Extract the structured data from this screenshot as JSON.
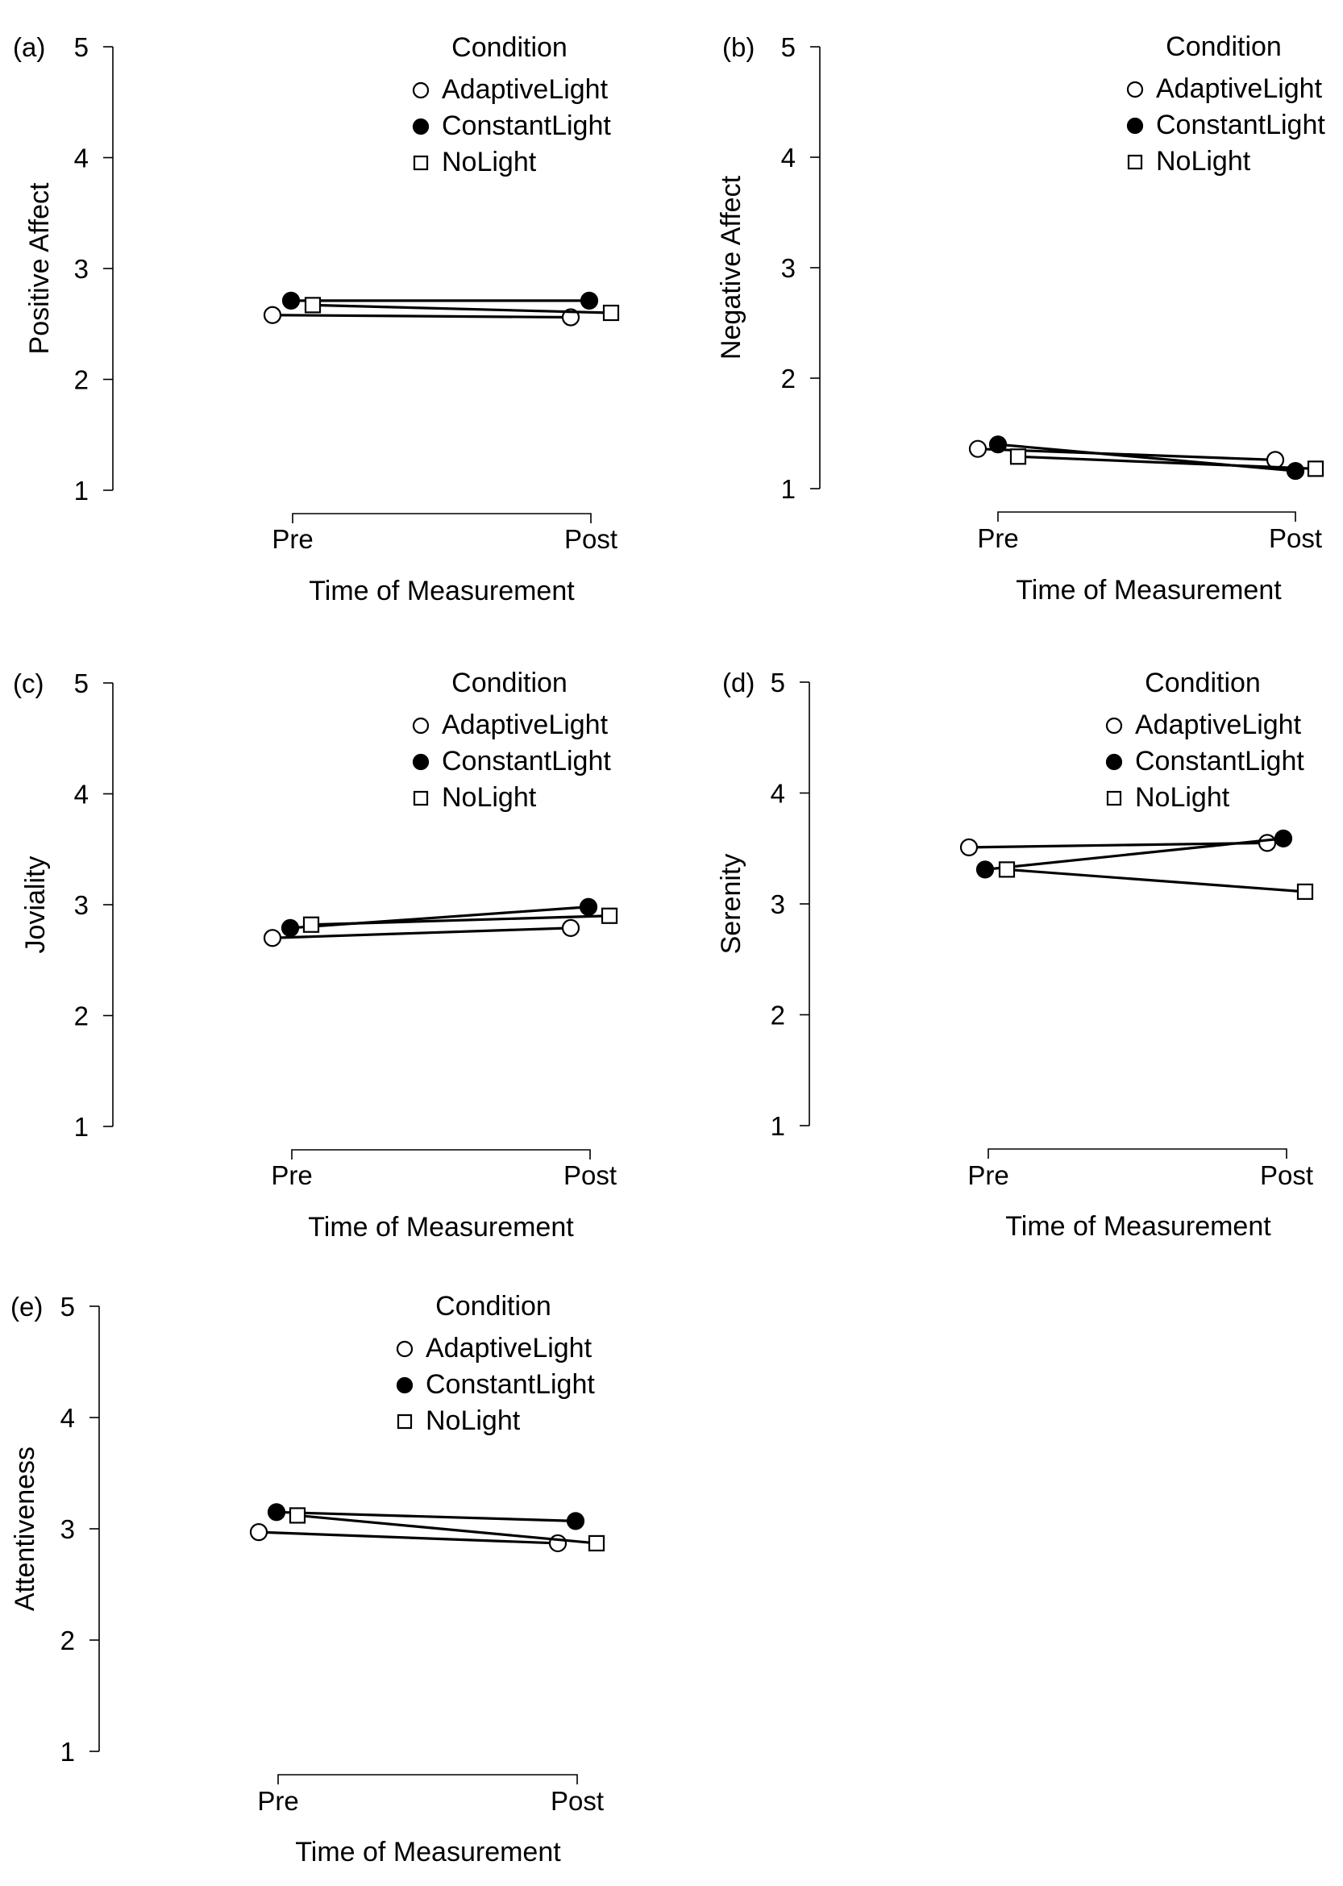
{
  "chart_data": [
    {
      "type": "line",
      "panel_label": "(a)",
      "xlabel": "Time of Measurement",
      "ylabel": "Positive Affect",
      "categories": [
        "Pre",
        "Post"
      ],
      "ylim": [
        1,
        5
      ],
      "yticks": [
        "1",
        "2",
        "3",
        "4",
        "5"
      ],
      "legend_title": "Condition",
      "series": [
        {
          "name": "AdaptiveLight",
          "marker": "open-circle",
          "values": [
            2.58,
            2.56
          ],
          "err": [
            0.03,
            0.03
          ]
        },
        {
          "name": "ConstantLight",
          "marker": "filled-circle",
          "values": [
            2.71,
            2.71
          ],
          "err": [
            0.03,
            0.03
          ]
        },
        {
          "name": "NoLight",
          "marker": "open-square",
          "values": [
            2.67,
            2.6
          ],
          "err": [
            0.03,
            0.03
          ]
        }
      ]
    },
    {
      "type": "line",
      "panel_label": "(b)",
      "xlabel": "Time of Measurement",
      "ylabel": "Negative Affect",
      "categories": [
        "Pre",
        "Post"
      ],
      "ylim": [
        1,
        5
      ],
      "yticks": [
        "1",
        "2",
        "3",
        "4",
        "5"
      ],
      "legend_title": "Condition",
      "series": [
        {
          "name": "AdaptiveLight",
          "marker": "open-circle",
          "values": [
            1.36,
            1.26
          ],
          "err": [
            0.03,
            0.03
          ]
        },
        {
          "name": "ConstantLight",
          "marker": "filled-circle",
          "values": [
            1.4,
            1.16
          ],
          "err": [
            0.03,
            0.03
          ]
        },
        {
          "name": "NoLight",
          "marker": "open-square",
          "values": [
            1.29,
            1.18
          ],
          "err": [
            0.03,
            0.03
          ]
        }
      ]
    },
    {
      "type": "line",
      "panel_label": "(c)",
      "xlabel": "Time of Measurement",
      "ylabel": "Joviality",
      "categories": [
        "Pre",
        "Post"
      ],
      "ylim": [
        1,
        5
      ],
      "yticks": [
        "1",
        "2",
        "3",
        "4",
        "5"
      ],
      "legend_title": "Condition",
      "series": [
        {
          "name": "AdaptiveLight",
          "marker": "open-circle",
          "values": [
            2.7,
            2.79
          ],
          "err": [
            0.03,
            0.04
          ]
        },
        {
          "name": "ConstantLight",
          "marker": "filled-circle",
          "values": [
            2.79,
            2.98
          ],
          "err": [
            0.03,
            0.04
          ]
        },
        {
          "name": "NoLight",
          "marker": "open-square",
          "values": [
            2.82,
            2.9
          ],
          "err": [
            0.04,
            0.04
          ]
        }
      ]
    },
    {
      "type": "line",
      "panel_label": "(d)",
      "xlabel": "Time of Measurement",
      "ylabel": "Serenity",
      "categories": [
        "Pre",
        "Post"
      ],
      "ylim": [
        1,
        5
      ],
      "yticks": [
        "1",
        "2",
        "3",
        "4",
        "5"
      ],
      "legend_title": "Condition",
      "series": [
        {
          "name": "AdaptiveLight",
          "marker": "open-circle",
          "values": [
            3.51,
            3.55
          ],
          "err": [
            0.03,
            0.03
          ]
        },
        {
          "name": "ConstantLight",
          "marker": "filled-circle",
          "values": [
            3.31,
            3.59
          ],
          "err": [
            0.03,
            0.03
          ]
        },
        {
          "name": "NoLight",
          "marker": "open-square",
          "values": [
            3.31,
            3.11
          ],
          "err": [
            0.03,
            0.04
          ]
        }
      ]
    },
    {
      "type": "line",
      "panel_label": "(e)",
      "xlabel": "Time of Measurement",
      "ylabel": "Attentiveness",
      "categories": [
        "Pre",
        "Post"
      ],
      "ylim": [
        1,
        5
      ],
      "yticks": [
        "1",
        "2",
        "3",
        "4",
        "5"
      ],
      "legend_title": "Condition",
      "series": [
        {
          "name": "AdaptiveLight",
          "marker": "open-circle",
          "values": [
            2.97,
            2.87
          ],
          "err": [
            0.03,
            0.03
          ]
        },
        {
          "name": "ConstantLight",
          "marker": "filled-circle",
          "values": [
            3.15,
            3.07
          ],
          "err": [
            0.03,
            0.03
          ]
        },
        {
          "name": "NoLight",
          "marker": "open-square",
          "values": [
            3.12,
            2.87
          ],
          "err": [
            0.03,
            0.03
          ]
        }
      ]
    }
  ]
}
